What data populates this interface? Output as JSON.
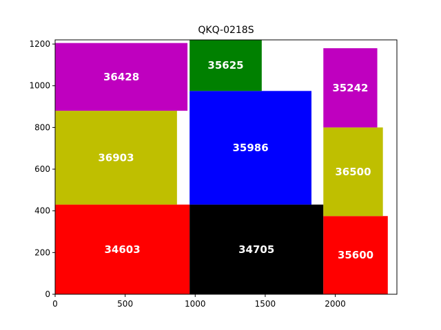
{
  "chart_data": {
    "type": "bar",
    "title": "QKQ-0218S",
    "xlabel": "",
    "ylabel": "",
    "xlim": [
      0,
      2440
    ],
    "ylim": [
      0,
      1220
    ],
    "grid": false,
    "x_ticks": [
      0,
      500,
      1000,
      1500,
      2000
    ],
    "y_ticks": [
      0,
      200,
      400,
      600,
      800,
      1000,
      1200
    ],
    "rectangles": [
      {
        "label": "34603",
        "x": 0,
        "y": 0,
        "width": 960,
        "height": 430,
        "color": "#ff0000"
      },
      {
        "label": "36903",
        "x": 0,
        "y": 430,
        "width": 870,
        "height": 450,
        "color": "#bfbf00"
      },
      {
        "label": "36428",
        "x": 0,
        "y": 880,
        "width": 945,
        "height": 325,
        "color": "#bf00bf"
      },
      {
        "label": "34705",
        "x": 960,
        "y": 0,
        "width": 955,
        "height": 430,
        "color": "#000000"
      },
      {
        "label": "35986",
        "x": 960,
        "y": 430,
        "width": 870,
        "height": 545,
        "color": "#0000ff"
      },
      {
        "label": "35625",
        "x": 960,
        "y": 975,
        "width": 515,
        "height": 245,
        "color": "#008000"
      },
      {
        "label": "35600",
        "x": 1915,
        "y": 0,
        "width": 460,
        "height": 375,
        "color": "#ff0000"
      },
      {
        "label": "36500",
        "x": 1915,
        "y": 375,
        "width": 425,
        "height": 425,
        "color": "#bfbf00"
      },
      {
        "label": "35242",
        "x": 1915,
        "y": 800,
        "width": 385,
        "height": 380,
        "color": "#bf00bf"
      }
    ]
  }
}
